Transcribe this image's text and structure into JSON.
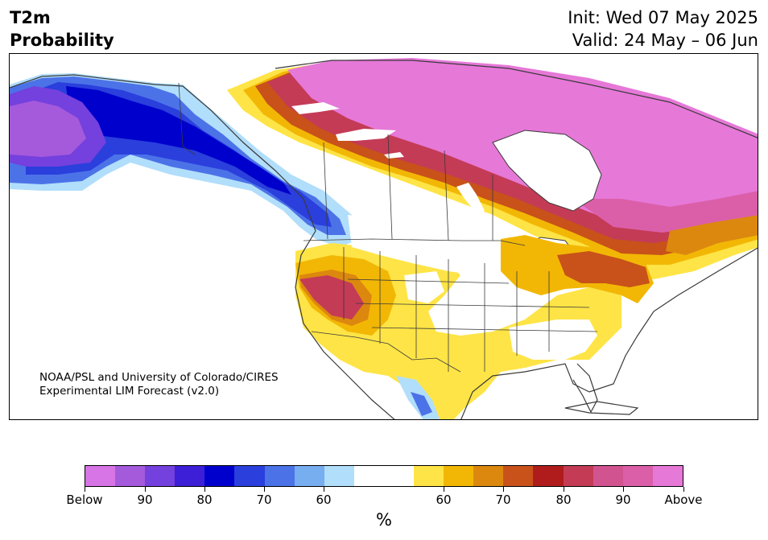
{
  "header": {
    "variable": "T2m",
    "product": "Probability",
    "init": "Init: Wed 07 May 2025",
    "valid": "Valid: 24 May – 06 Jun"
  },
  "credit": {
    "line1": "NOAA/PSL and University of Colorado/CIRES",
    "line2": "Experimental LIM Forecast (v2.0)"
  },
  "colorbar": {
    "colors": [
      "#d774e6",
      "#a45adb",
      "#7440de",
      "#3c1fd6",
      "#0000cc",
      "#2a3fdc",
      "#4c72e8",
      "#77aef0",
      "#b1defb",
      "#ffffff",
      "#ffffff",
      "#fee446",
      "#f2b705",
      "#dc880f",
      "#c8521a",
      "#b01c1c",
      "#c43b56",
      "#d15490",
      "#db5fa8",
      "#e678d8"
    ],
    "labels": [
      "Below",
      "90",
      "80",
      "70",
      "60",
      "60",
      "70",
      "80",
      "90",
      "Above"
    ],
    "unit": "%"
  },
  "colors": {
    "land_neutral": "#ffffff",
    "border": "#3a3a3a"
  }
}
